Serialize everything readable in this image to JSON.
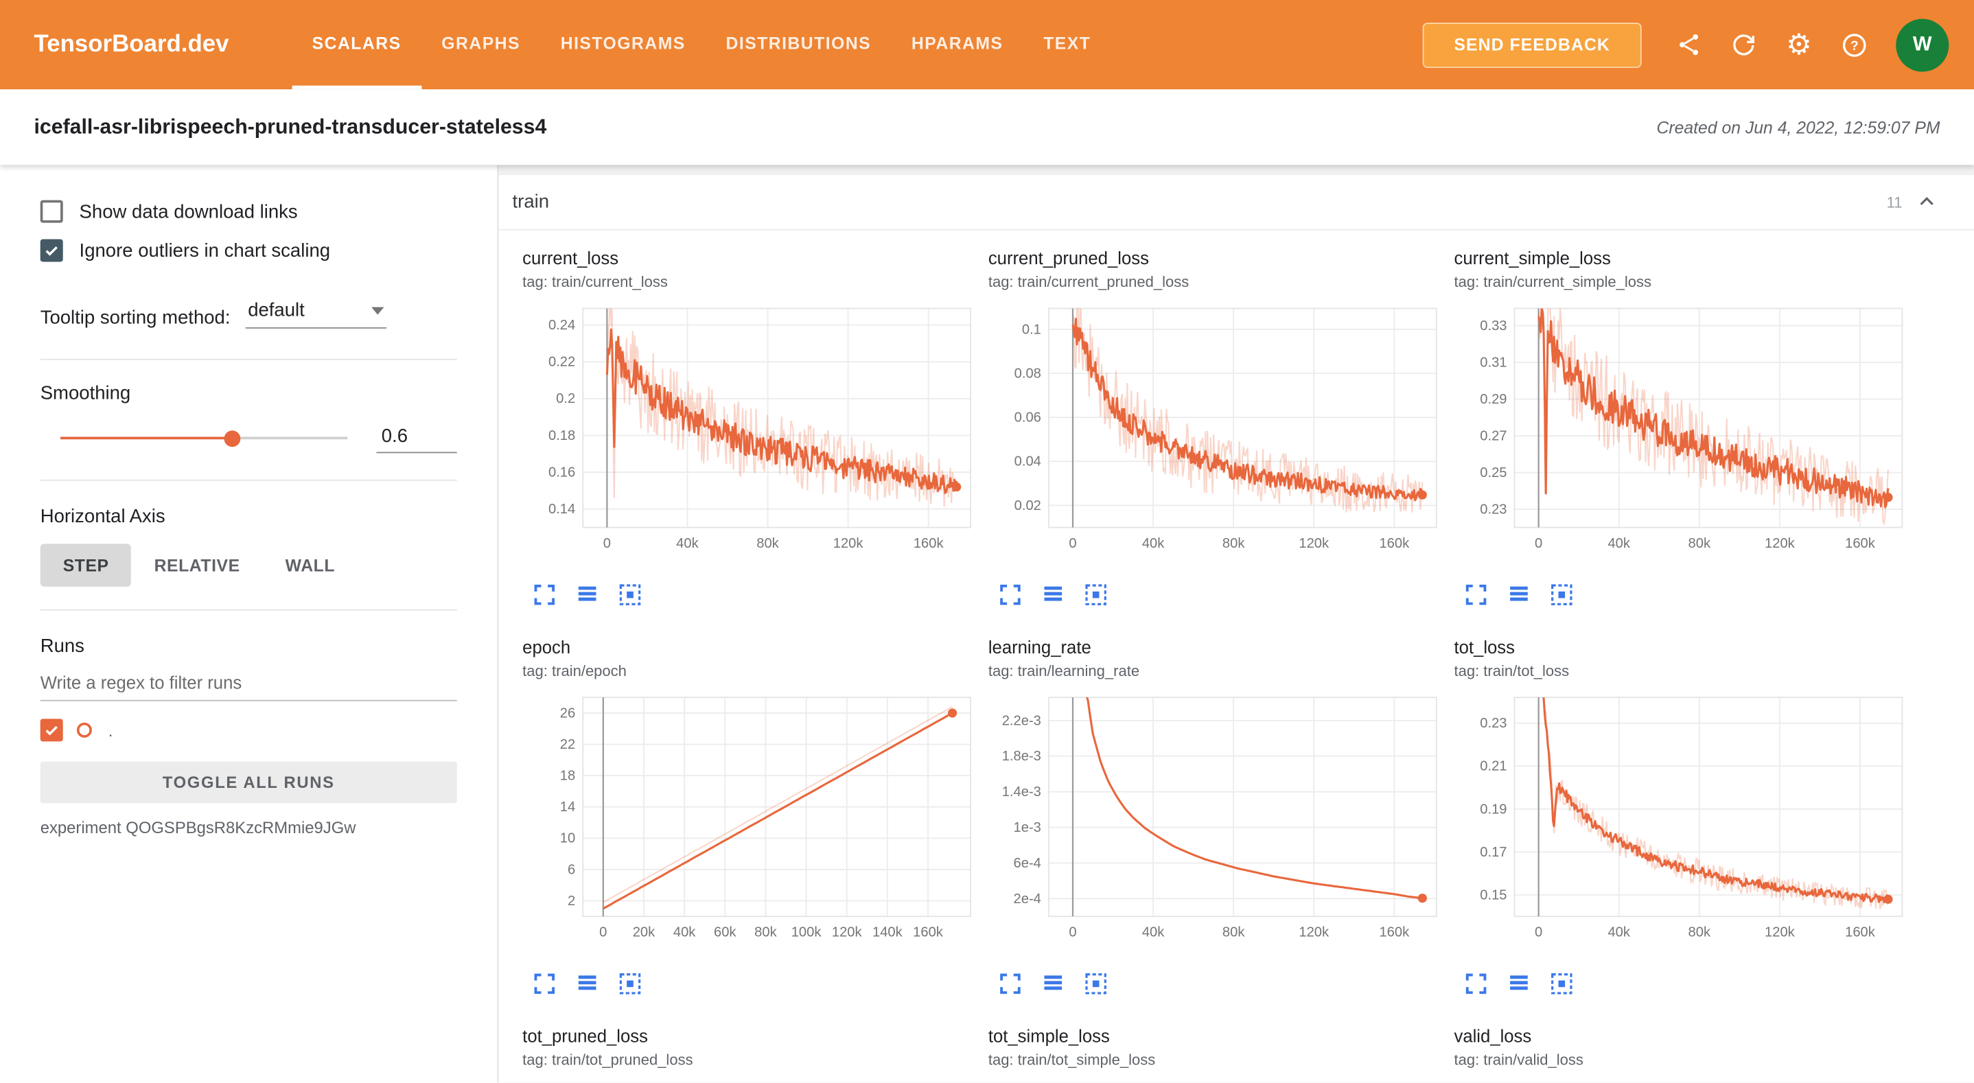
{
  "header": {
    "logo": "TensorBoard.dev",
    "tabs": [
      {
        "label": "SCALARS",
        "active": true
      },
      {
        "label": "GRAPHS",
        "active": false
      },
      {
        "label": "HISTOGRAMS",
        "active": false
      },
      {
        "label": "DISTRIBUTIONS",
        "active": false
      },
      {
        "label": "HPARAMS",
        "active": false
      },
      {
        "label": "TEXT",
        "active": false
      }
    ],
    "feedback_button": "SEND FEEDBACK",
    "icons": [
      "share-icon",
      "refresh-icon",
      "settings-icon",
      "help-icon"
    ],
    "avatar_initial": "W"
  },
  "experiment_bar": {
    "title": "icefall-asr-librispeech-pruned-transducer-stateless4",
    "created": "Created on Jun 4, 2022, 12:59:07 PM"
  },
  "sidebar": {
    "show_download_label": "Show data download links",
    "ignore_outliers_label": "Ignore outliers in chart scaling",
    "tooltip_sorting_label": "Tooltip sorting method:",
    "tooltip_sorting_value": "default",
    "smoothing_label": "Smoothing",
    "smoothing_value": "0.6",
    "horizontal_axis_label": "Horizontal Axis",
    "axis_buttons": [
      "STEP",
      "RELATIVE",
      "WALL"
    ],
    "axis_active": "STEP",
    "runs_label": "Runs",
    "runs_filter_placeholder": "Write a regex to filter runs",
    "run_name": ".",
    "toggle_all_label": "TOGGLE ALL RUNS",
    "experiment_id_text": "experiment QOGSPBgsR8KzcRMmie9JGw"
  },
  "main": {
    "section_title": "train",
    "section_count": "11"
  },
  "colors": {
    "header_orange": "#ef8432",
    "accent_orange": "#e8673c",
    "series": "#e8673c",
    "series_light": "rgba(232,103,60,0.28)",
    "icon_blue": "#3b78e8",
    "avatar_green": "#188038"
  },
  "chart_data": [
    {
      "id": "current_loss",
      "type": "line",
      "title": "current_loss",
      "tag": "tag: train/current_loss",
      "xlim": [
        -12000,
        181000
      ],
      "ylim": [
        0.13,
        0.249
      ],
      "xticks": [
        [
          0,
          "0"
        ],
        [
          40000,
          "40k"
        ],
        [
          80000,
          "80k"
        ],
        [
          120000,
          "120k"
        ],
        [
          160000,
          "160k"
        ]
      ],
      "yticks": [
        [
          0.14,
          "0.14"
        ],
        [
          0.16,
          "0.16"
        ],
        [
          0.18,
          "0.18"
        ],
        [
          0.2,
          "0.2"
        ],
        [
          0.22,
          "0.22"
        ],
        [
          0.24,
          "0.24"
        ]
      ],
      "trend": [
        [
          0,
          0.222
        ],
        [
          2000,
          0.238
        ],
        [
          5000,
          0.226
        ],
        [
          10000,
          0.216
        ],
        [
          15000,
          0.21
        ],
        [
          20000,
          0.205
        ],
        [
          30000,
          0.197
        ],
        [
          40000,
          0.191
        ],
        [
          50000,
          0.185
        ],
        [
          60000,
          0.18
        ],
        [
          70000,
          0.176
        ],
        [
          80000,
          0.173
        ],
        [
          90000,
          0.17
        ],
        [
          100000,
          0.168
        ],
        [
          110000,
          0.165
        ],
        [
          120000,
          0.163
        ],
        [
          130000,
          0.161
        ],
        [
          140000,
          0.159
        ],
        [
          150000,
          0.157
        ],
        [
          160000,
          0.155
        ],
        [
          168000,
          0.153
        ],
        [
          174000,
          0.152
        ]
      ],
      "spikes": [
        [
          3500,
          0.158
        ]
      ],
      "noise_smooth": 0.01,
      "noise_raw": 0.026,
      "noise_end": 0.5,
      "end_dot": true
    },
    {
      "id": "current_pruned_loss",
      "type": "line",
      "title": "current_pruned_loss",
      "tag": "tag: train/current_pruned_loss",
      "xlim": [
        -12000,
        181000
      ],
      "ylim": [
        0.01,
        0.1095
      ],
      "xticks": [
        [
          0,
          "0"
        ],
        [
          40000,
          "40k"
        ],
        [
          80000,
          "80k"
        ],
        [
          120000,
          "120k"
        ],
        [
          160000,
          "160k"
        ]
      ],
      "yticks": [
        [
          0.02,
          "0.02"
        ],
        [
          0.04,
          "0.04"
        ],
        [
          0.06,
          "0.06"
        ],
        [
          0.08,
          "0.08"
        ],
        [
          0.1,
          "0.1"
        ]
      ],
      "trend": [
        [
          0,
          0.103
        ],
        [
          3000,
          0.097
        ],
        [
          6000,
          0.09
        ],
        [
          10000,
          0.082
        ],
        [
          15000,
          0.073
        ],
        [
          20000,
          0.066
        ],
        [
          30000,
          0.057
        ],
        [
          40000,
          0.051
        ],
        [
          50000,
          0.046
        ],
        [
          60000,
          0.042
        ],
        [
          70000,
          0.039
        ],
        [
          80000,
          0.036
        ],
        [
          90000,
          0.034
        ],
        [
          100000,
          0.032
        ],
        [
          110000,
          0.031
        ],
        [
          120000,
          0.03
        ],
        [
          130000,
          0.028
        ],
        [
          140000,
          0.027
        ],
        [
          150000,
          0.026
        ],
        [
          160000,
          0.0255
        ],
        [
          168000,
          0.025
        ],
        [
          174000,
          0.0248
        ]
      ],
      "noise_smooth": 0.006,
      "noise_raw": 0.019,
      "noise_end": 0.45,
      "end_dot": true
    },
    {
      "id": "current_simple_loss",
      "type": "line",
      "title": "current_simple_loss",
      "tag": "tag: train/current_simple_loss",
      "xlim": [
        -12000,
        181000
      ],
      "ylim": [
        0.2201,
        0.3394
      ],
      "xticks": [
        [
          0,
          "0"
        ],
        [
          40000,
          "40k"
        ],
        [
          80000,
          "80k"
        ],
        [
          120000,
          "120k"
        ],
        [
          160000,
          "160k"
        ]
      ],
      "yticks": [
        [
          0.23,
          "0.23"
        ],
        [
          0.25,
          "0.25"
        ],
        [
          0.27,
          "0.27"
        ],
        [
          0.29,
          "0.29"
        ],
        [
          0.31,
          "0.31"
        ],
        [
          0.33,
          "0.33"
        ]
      ],
      "trend": [
        [
          0,
          0.335
        ],
        [
          3000,
          0.329
        ],
        [
          6000,
          0.322
        ],
        [
          10000,
          0.314
        ],
        [
          15000,
          0.306
        ],
        [
          20000,
          0.3
        ],
        [
          30000,
          0.291
        ],
        [
          40000,
          0.284
        ],
        [
          50000,
          0.278
        ],
        [
          60000,
          0.273
        ],
        [
          70000,
          0.268
        ],
        [
          80000,
          0.264
        ],
        [
          90000,
          0.26
        ],
        [
          100000,
          0.257
        ],
        [
          110000,
          0.254
        ],
        [
          120000,
          0.251
        ],
        [
          130000,
          0.248
        ],
        [
          140000,
          0.245
        ],
        [
          150000,
          0.242
        ],
        [
          160000,
          0.239
        ],
        [
          168000,
          0.2375
        ],
        [
          174000,
          0.2365
        ]
      ],
      "spikes": [
        [
          3500,
          0.24
        ]
      ],
      "noise_smooth": 0.011,
      "noise_raw": 0.028,
      "noise_end": 0.55,
      "end_dot": true
    },
    {
      "id": "epoch",
      "type": "line",
      "title": "epoch",
      "tag": "tag: train/epoch",
      "xlim": [
        -10000,
        181000
      ],
      "ylim": [
        0,
        28
      ],
      "xticks": [
        [
          0,
          "0"
        ],
        [
          20000,
          "20k"
        ],
        [
          40000,
          "40k"
        ],
        [
          60000,
          "60k"
        ],
        [
          80000,
          "80k"
        ],
        [
          100000,
          "100k"
        ],
        [
          120000,
          "120k"
        ],
        [
          140000,
          "140k"
        ],
        [
          160000,
          "160k"
        ]
      ],
      "yticks": [
        [
          2,
          "2"
        ],
        [
          6,
          "6"
        ],
        [
          10,
          "10"
        ],
        [
          14,
          "14"
        ],
        [
          18,
          "18"
        ],
        [
          22,
          "22"
        ],
        [
          26,
          "26"
        ]
      ],
      "trend": [
        [
          0,
          1
        ],
        [
          172000,
          26
        ]
      ],
      "noise_smooth": 0,
      "noise_raw": 0,
      "noise_end": 1,
      "raw_dy": -5,
      "end_dot": true
    },
    {
      "id": "learning_rate",
      "type": "line",
      "title": "learning_rate",
      "tag": "tag: train/learning_rate",
      "xlim": [
        -12000,
        181000
      ],
      "ylim": [
        0,
        0.00246
      ],
      "xticks": [
        [
          0,
          "0"
        ],
        [
          40000,
          "40k"
        ],
        [
          80000,
          "80k"
        ],
        [
          120000,
          "120k"
        ],
        [
          160000,
          "160k"
        ]
      ],
      "yticks": [
        [
          0.0002,
          "2e-4"
        ],
        [
          0.0006,
          "6e-4"
        ],
        [
          0.001,
          "1e-3"
        ],
        [
          0.0014,
          "1.4e-3"
        ],
        [
          0.0018,
          "1.8e-3"
        ],
        [
          0.0022,
          "2.2e-3"
        ]
      ],
      "trend": [
        [
          0,
          0.0026
        ],
        [
          7000,
          0.0025
        ],
        [
          10000,
          0.00205
        ],
        [
          14000,
          0.00172
        ],
        [
          18000,
          0.0015
        ],
        [
          22000,
          0.00134
        ],
        [
          26000,
          0.00121
        ],
        [
          30000,
          0.00111
        ],
        [
          36000,
          0.00099
        ],
        [
          42000,
          0.0009
        ],
        [
          50000,
          0.00079
        ],
        [
          58000,
          0.00071
        ],
        [
          66000,
          0.00064
        ],
        [
          74000,
          0.00059
        ],
        [
          82000,
          0.00054
        ],
        [
          90000,
          0.0005
        ],
        [
          100000,
          0.00045
        ],
        [
          110000,
          0.00041
        ],
        [
          120000,
          0.00037
        ],
        [
          130000,
          0.00034
        ],
        [
          140000,
          0.00031
        ],
        [
          150000,
          0.00028
        ],
        [
          160000,
          0.00025
        ],
        [
          168000,
          0.00022
        ],
        [
          174000,
          0.000205
        ]
      ],
      "noise_smooth": 0,
      "noise_raw": 0,
      "noise_end": 1,
      "end_dot": true
    },
    {
      "id": "tot_loss",
      "type": "line",
      "title": "tot_loss",
      "tag": "tag: train/tot_loss",
      "xlim": [
        -12000,
        181000
      ],
      "ylim": [
        0.14,
        0.242
      ],
      "xticks": [
        [
          0,
          "0"
        ],
        [
          40000,
          "40k"
        ],
        [
          80000,
          "80k"
        ],
        [
          120000,
          "120k"
        ],
        [
          160000,
          "160k"
        ]
      ],
      "yticks": [
        [
          0.15,
          "0.15"
        ],
        [
          0.17,
          "0.17"
        ],
        [
          0.19,
          "0.19"
        ],
        [
          0.21,
          "0.21"
        ],
        [
          0.23,
          "0.23"
        ]
      ],
      "trend": [
        [
          0,
          0.272
        ],
        [
          1500,
          0.252
        ],
        [
          3000,
          0.236
        ],
        [
          4500,
          0.222
        ],
        [
          6000,
          0.206
        ],
        [
          7500,
          0.181
        ],
        [
          9000,
          0.199
        ],
        [
          11000,
          0.2
        ],
        [
          14000,
          0.196
        ],
        [
          18000,
          0.191
        ],
        [
          24000,
          0.186
        ],
        [
          30000,
          0.181
        ],
        [
          40000,
          0.175
        ],
        [
          50000,
          0.17
        ],
        [
          60000,
          0.166
        ],
        [
          70000,
          0.163
        ],
        [
          80000,
          0.161
        ],
        [
          90000,
          0.158
        ],
        [
          100000,
          0.156
        ],
        [
          110000,
          0.155
        ],
        [
          120000,
          0.153
        ],
        [
          130000,
          0.152
        ],
        [
          140000,
          0.151
        ],
        [
          150000,
          0.15
        ],
        [
          160000,
          0.149
        ],
        [
          168000,
          0.1485
        ],
        [
          174000,
          0.148
        ]
      ],
      "noise_smooth": 0.0025,
      "noise_raw": 0.007,
      "noise_end": 0.7,
      "end_dot": true
    },
    {
      "id": "tot_pruned_loss",
      "type": "line",
      "title": "tot_pruned_loss",
      "tag": "tag: train/tot_pruned_loss",
      "plot": false
    },
    {
      "id": "tot_simple_loss",
      "type": "line",
      "title": "tot_simple_loss",
      "tag": "tag: train/tot_simple_loss",
      "plot": false
    },
    {
      "id": "valid_loss",
      "type": "line",
      "title": "valid_loss",
      "tag": "tag: train/valid_loss",
      "plot": false
    }
  ]
}
